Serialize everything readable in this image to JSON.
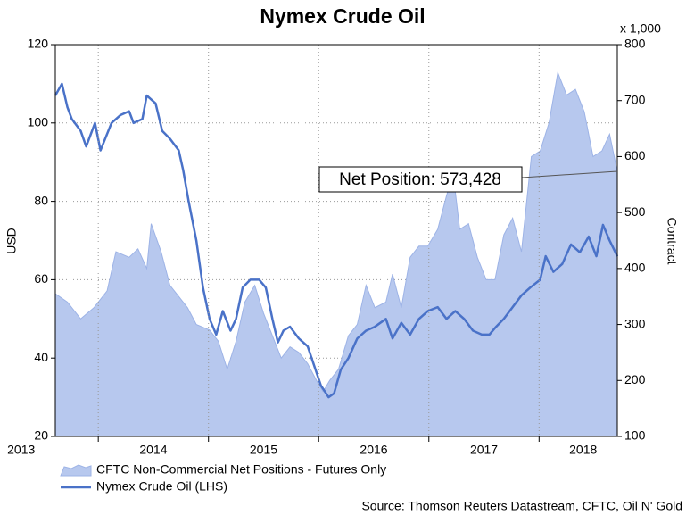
{
  "chart_data": {
    "type": "line",
    "title": "Nymex Crude Oil",
    "ylabel": "USD",
    "y2label": "Contract",
    "y2_unit": "x 1,000",
    "annotation": "Net Position: 573,428",
    "source": "Source: Thomson Reuters Datastream, CFTC, Oil N' Gold",
    "xlim": [
      2013.61,
      2018.71
    ],
    "xticks": [
      {
        "value": 2013.3,
        "label": "2013"
      },
      {
        "value": 2014.5,
        "label": "2014"
      },
      {
        "value": 2015.5,
        "label": "2015"
      },
      {
        "value": 2016.5,
        "label": "2016"
      },
      {
        "value": 2017.5,
        "label": "2017"
      },
      {
        "value": 2018.4,
        "label": "2018"
      }
    ],
    "xgrid": [
      2014,
      2015,
      2016,
      2017,
      2018
    ],
    "ylim": [
      20,
      120
    ],
    "yticks": [
      20,
      40,
      60,
      80,
      100,
      120
    ],
    "y2lim": [
      100,
      800
    ],
    "y2ticks": [
      100,
      200,
      300,
      400,
      500,
      600,
      700,
      800
    ],
    "grid": true,
    "series": [
      {
        "name": "CFTC Non-Commercial Net Positions - Futures Only",
        "type": "area",
        "axis": "y2",
        "color": "#b7c8ee",
        "x": [
          2013.61,
          2013.72,
          2013.84,
          2013.96,
          2014.08,
          2014.16,
          2014.28,
          2014.36,
          2014.44,
          2014.48,
          2014.57,
          2014.65,
          2014.73,
          2014.81,
          2014.89,
          2015.01,
          2015.09,
          2015.17,
          2015.25,
          2015.33,
          2015.42,
          2015.5,
          2015.58,
          2015.66,
          2015.74,
          2015.82,
          2015.9,
          2015.98,
          2016.04,
          2016.1,
          2016.18,
          2016.27,
          2016.35,
          2016.43,
          2016.51,
          2016.61,
          2016.67,
          2016.75,
          2016.83,
          2016.91,
          2016.99,
          2017.08,
          2017.16,
          2017.22,
          2017.28,
          2017.36,
          2017.44,
          2017.52,
          2017.6,
          2017.68,
          2017.76,
          2017.84,
          2017.93,
          2018.01,
          2018.09,
          2018.17,
          2018.25,
          2018.33,
          2018.41,
          2018.49,
          2018.57,
          2018.64,
          2018.71
        ],
        "values": [
          355,
          340,
          310,
          330,
          360,
          430,
          420,
          435,
          400,
          480,
          430,
          370,
          350,
          330,
          300,
          290,
          270,
          220,
          270,
          340,
          370,
          320,
          280,
          240,
          260,
          250,
          230,
          200,
          180,
          200,
          220,
          280,
          300,
          370,
          330,
          340,
          390,
          330,
          420,
          440,
          440,
          470,
          530,
          570,
          470,
          480,
          420,
          380,
          380,
          460,
          490,
          430,
          600,
          610,
          660,
          750,
          710,
          720,
          680,
          600,
          610,
          640,
          573
        ]
      },
      {
        "name": "Nymex Crude Oil (LHS)",
        "type": "line",
        "axis": "y",
        "color": "#4a72c8",
        "x": [
          2013.61,
          2013.67,
          2013.72,
          2013.76,
          2013.84,
          2013.89,
          2013.97,
          2014.02,
          2014.12,
          2014.2,
          2014.28,
          2014.32,
          2014.4,
          2014.44,
          2014.52,
          2014.58,
          2014.65,
          2014.73,
          2014.77,
          2014.82,
          2014.89,
          2014.95,
          2015.01,
          2015.07,
          2015.13,
          2015.2,
          2015.25,
          2015.31,
          2015.38,
          2015.46,
          2015.52,
          2015.58,
          2015.63,
          2015.68,
          2015.74,
          2015.82,
          2015.9,
          2015.96,
          2016.02,
          2016.09,
          2016.14,
          2016.2,
          2016.27,
          2016.35,
          2016.43,
          2016.51,
          2016.61,
          2016.67,
          2016.75,
          2016.83,
          2016.91,
          2016.99,
          2017.08,
          2017.16,
          2017.24,
          2017.32,
          2017.4,
          2017.48,
          2017.55,
          2017.61,
          2017.68,
          2017.76,
          2017.84,
          2017.92,
          2018.01,
          2018.06,
          2018.13,
          2018.21,
          2018.29,
          2018.37,
          2018.45,
          2018.52,
          2018.58,
          2018.64,
          2018.71
        ],
        "values": [
          107,
          110,
          104,
          101,
          98,
          94,
          100,
          93,
          100,
          102,
          103,
          100,
          101,
          107,
          105,
          98,
          96,
          93,
          88,
          80,
          70,
          58,
          50,
          46,
          52,
          47,
          50,
          58,
          60,
          60,
          58,
          50,
          44,
          47,
          48,
          45,
          43,
          38,
          33,
          30,
          31,
          37,
          40,
          45,
          47,
          48,
          50,
          45,
          49,
          46,
          50,
          52,
          53,
          50,
          52,
          50,
          47,
          46,
          46,
          48,
          50,
          53,
          56,
          58,
          60,
          66,
          62,
          64,
          69,
          67,
          71,
          66,
          74,
          70,
          66
        ]
      }
    ]
  }
}
